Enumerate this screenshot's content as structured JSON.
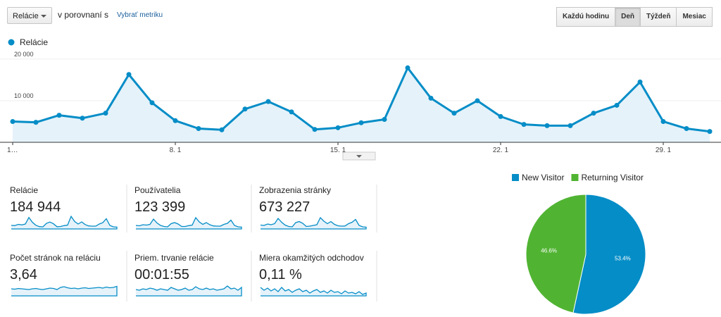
{
  "toolbar": {
    "metric_select": "Relácie",
    "compare_text": "v porovnaní s",
    "select_metric_link": "Vybrať metriku",
    "time_buttons": [
      "Každú hodinu",
      "Deň",
      "Týždeň",
      "Mesiac"
    ]
  },
  "chart_data": [
    {
      "type": "line",
      "categories": [
        "1…",
        null,
        null,
        null,
        null,
        null,
        null,
        "8. 1",
        null,
        null,
        null,
        null,
        null,
        null,
        "15. 1",
        null,
        null,
        null,
        null,
        null,
        null,
        "22. 1",
        null,
        null,
        null,
        null,
        null,
        null,
        "29. 1",
        null,
        null
      ],
      "series": [
        {
          "name": "Relácie",
          "color": "#058dc7",
          "values": [
            5000,
            4800,
            6500,
            5800,
            7000,
            16300,
            9500,
            5200,
            3300,
            3000,
            8000,
            9800,
            7300,
            3100,
            3500,
            4700,
            5500,
            17900,
            10600,
            7000,
            10000,
            6200,
            4300,
            4000,
            4000,
            7000,
            8900,
            14500,
            5000,
            3300,
            2600
          ]
        }
      ],
      "ylim": [
        0,
        21000
      ],
      "yticks": [
        {
          "value": 10000,
          "label": "10 000"
        },
        {
          "value": 20000,
          "label": "20 000"
        }
      ],
      "grid": true,
      "area": true
    },
    {
      "type": "pie",
      "categories": [
        "New Visitor",
        "Returning Visitor"
      ],
      "values": [
        53.4,
        46.6
      ],
      "value_labels": [
        "53.4%",
        "46.6%"
      ],
      "colors": [
        "#058dc7",
        "#50b432"
      ],
      "legend": "top"
    }
  ],
  "metrics": [
    {
      "label": "Relácie",
      "value": "184 944"
    },
    {
      "label": "Používatelia",
      "value": "123 399"
    },
    {
      "label": "Zobrazenia stránky",
      "value": "673 227"
    },
    {
      "label": "Počet stránok na reláciu",
      "value": "3,64"
    },
    {
      "label": "Priem. trvanie relácie",
      "value": "00:01:55"
    },
    {
      "label": "Miera okamžitých odchodov",
      "value": "0,11 %"
    }
  ]
}
